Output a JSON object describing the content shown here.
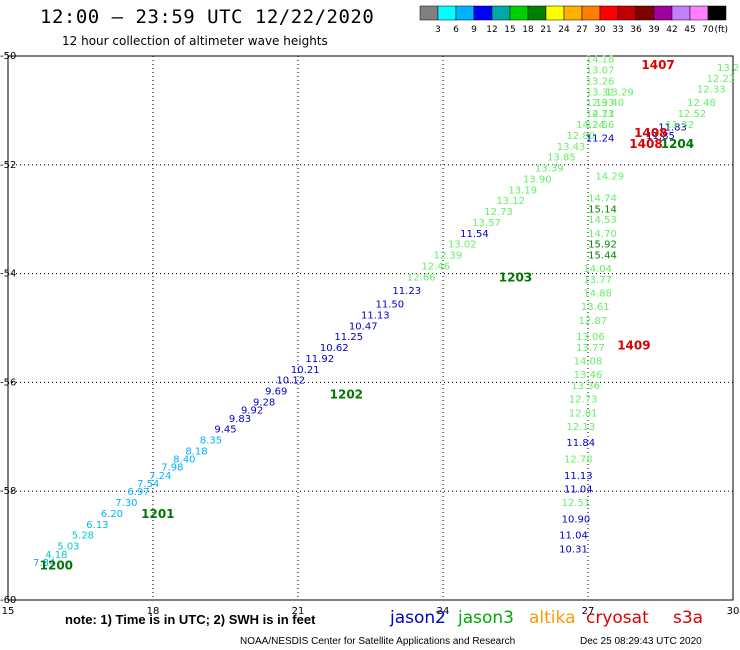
{
  "header": {
    "title": "12:00 – 23:59 UTC 12/22/2020",
    "subtitle": "12 hour collection of altimeter wave heights"
  },
  "colorbar": {
    "ticks": [
      "3",
      "6",
      "9",
      "12",
      "15",
      "18",
      "21",
      "24",
      "27",
      "30",
      "33",
      "36",
      "39",
      "42",
      "45",
      "70"
    ],
    "unit": "(ft)",
    "colors": [
      "#808080",
      "#00ffff",
      "#00b2ff",
      "#0000ff",
      "#00a8a8",
      "#00d000",
      "#008000",
      "#ffff00",
      "#ffb000",
      "#ff8000",
      "#ff0000",
      "#c00000",
      "#800000",
      "#a000a0",
      "#c080ff",
      "#ff80ff",
      "#000000"
    ]
  },
  "footer": {
    "note": "note: 1) Time is in UTC; 2) SWH is in feet",
    "source": "NOAA/NESDIS Center for Satellite Applications and Research",
    "timestamp": "Dec 25 08:29:43 UTC 2020"
  },
  "satellites": [
    {
      "name": "jason2",
      "color": "#0000cc"
    },
    {
      "name": "jason3",
      "color": "#00aa00"
    },
    {
      "name": "altika",
      "color": "#ff9900"
    },
    {
      "name": "cryosat",
      "color": "#dd0000"
    },
    {
      "name": "s3a",
      "color": "#dd0000"
    }
  ],
  "chart_data": {
    "type": "scatter",
    "xlim": [
      15,
      30
    ],
    "ylim": [
      -60,
      -50
    ],
    "xticks": [
      "15",
      "18",
      "21",
      "24",
      "27",
      "30"
    ],
    "yticks": [
      "-50",
      "-52",
      "-54",
      "-56",
      "-58",
      "-60"
    ],
    "grid": true,
    "time_labels": [
      {
        "text": "1200",
        "x": 16.0,
        "y": -59.35,
        "color": "#007700"
      },
      {
        "text": "1201",
        "x": 18.1,
        "y": -58.4,
        "color": "#007700"
      },
      {
        "text": "1202",
        "x": 22.0,
        "y": -56.2,
        "color": "#007700"
      },
      {
        "text": "1203",
        "x": 25.5,
        "y": -54.05,
        "color": "#007700"
      },
      {
        "text": "1204",
        "x": 28.85,
        "y": -51.6,
        "color": "#007700"
      },
      {
        "text": "1407",
        "x": 28.45,
        "y": -50.15,
        "color": "#dd0000"
      },
      {
        "text": "1408",
        "x": 28.3,
        "y": -51.4,
        "color": "#dd0000"
      },
      {
        "text": "1408",
        "x": 28.2,
        "y": -51.6,
        "color": "#dd0000"
      },
      {
        "text": "1409",
        "x": 27.95,
        "y": -55.3,
        "color": "#dd0000"
      }
    ],
    "series": [
      {
        "satellite": "jason3 (track 1)",
        "points": [
          {
            "x": 15.75,
            "y": -59.3,
            "v": "7.34",
            "c": "#00b2ff"
          },
          {
            "x": 16.0,
            "y": -59.15,
            "v": "4.18",
            "c": "#00cccc"
          },
          {
            "x": 16.25,
            "y": -59.0,
            "v": "5.03",
            "c": "#00cccc"
          },
          {
            "x": 16.55,
            "y": -58.8,
            "v": "5.28",
            "c": "#00cccc"
          },
          {
            "x": 16.85,
            "y": -58.6,
            "v": "6.13",
            "c": "#00b2ff"
          },
          {
            "x": 17.15,
            "y": -58.4,
            "v": "6.20",
            "c": "#00b2ff"
          },
          {
            "x": 17.45,
            "y": -58.2,
            "v": "7.30",
            "c": "#00b2ff"
          },
          {
            "x": 17.7,
            "y": -58.0,
            "v": "6.97",
            "c": "#00b2ff"
          },
          {
            "x": 17.9,
            "y": -57.85,
            "v": "7.54",
            "c": "#00b2ff"
          },
          {
            "x": 18.15,
            "y": -57.7,
            "v": "7.24",
            "c": "#00b2ff"
          },
          {
            "x": 18.4,
            "y": -57.55,
            "v": "7.98",
            "c": "#00b2ff"
          },
          {
            "x": 18.65,
            "y": -57.4,
            "v": "8.40",
            "c": "#00b2ff"
          },
          {
            "x": 18.9,
            "y": -57.25,
            "v": "8.18",
            "c": "#00b2ff"
          },
          {
            "x": 19.2,
            "y": -57.05,
            "v": "8.35",
            "c": "#00b2ff"
          },
          {
            "x": 19.5,
            "y": -56.85,
            "v": "9.45",
            "c": "#0000cc"
          },
          {
            "x": 19.8,
            "y": -56.65,
            "v": "9.83",
            "c": "#0000cc"
          },
          {
            "x": 20.05,
            "y": -56.5,
            "v": "9.92",
            "c": "#0000cc"
          },
          {
            "x": 20.3,
            "y": -56.35,
            "v": "9.28",
            "c": "#0000cc"
          },
          {
            "x": 20.55,
            "y": -56.15,
            "v": "9.69",
            "c": "#0000cc"
          },
          {
            "x": 20.85,
            "y": -55.95,
            "v": "10.12",
            "c": "#0000cc"
          },
          {
            "x": 21.15,
            "y": -55.75,
            "v": "10.21",
            "c": "#0000cc"
          },
          {
            "x": 21.45,
            "y": -55.55,
            "v": "11.92",
            "c": "#0000cc"
          },
          {
            "x": 21.75,
            "y": -55.35,
            "v": "10.62",
            "c": "#0000cc"
          },
          {
            "x": 22.05,
            "y": -55.15,
            "v": "11.25",
            "c": "#0000cc"
          },
          {
            "x": 22.35,
            "y": -54.95,
            "v": "10.47",
            "c": "#0000cc"
          },
          {
            "x": 22.6,
            "y": -54.75,
            "v": "11.13",
            "c": "#0000cc"
          },
          {
            "x": 22.9,
            "y": -54.55,
            "v": "11.50",
            "c": "#0000cc"
          },
          {
            "x": 23.25,
            "y": -54.3,
            "v": "11.23",
            "c": "#0000cc"
          },
          {
            "x": 23.55,
            "y": -54.05,
            "v": "12.66",
            "c": "#66ee66"
          },
          {
            "x": 23.85,
            "y": -53.85,
            "v": "12.46",
            "c": "#66ee66"
          },
          {
            "x": 24.1,
            "y": -53.65,
            "v": "12.39",
            "c": "#66ee66"
          },
          {
            "x": 24.4,
            "y": -53.45,
            "v": "13.02",
            "c": "#66ee66"
          },
          {
            "x": 24.65,
            "y": -53.25,
            "v": "11.54",
            "c": "#0000cc"
          },
          {
            "x": 24.9,
            "y": -53.05,
            "v": "13.57",
            "c": "#66ee66"
          },
          {
            "x": 25.15,
            "y": -52.85,
            "v": "12.73",
            "c": "#66ee66"
          },
          {
            "x": 25.4,
            "y": -52.65,
            "v": "13.12",
            "c": "#66ee66"
          },
          {
            "x": 25.65,
            "y": -52.45,
            "v": "13.19",
            "c": "#66ee66"
          },
          {
            "x": 25.95,
            "y": -52.25,
            "v": "13.90",
            "c": "#66ee66"
          },
          {
            "x": 26.2,
            "y": -52.05,
            "v": "13.39",
            "c": "#66ee66"
          },
          {
            "x": 26.45,
            "y": -51.85,
            "v": "13.85",
            "c": "#66ee66"
          },
          {
            "x": 26.65,
            "y": -51.65,
            "v": "13.43",
            "c": "#66ee66"
          },
          {
            "x": 26.85,
            "y": -51.45,
            "v": "12.80",
            "c": "#66ee66"
          },
          {
            "x": 27.05,
            "y": -51.25,
            "v": "14.24",
            "c": "#66ee66"
          },
          {
            "x": 27.25,
            "y": -51.05,
            "v": "14.11",
            "c": "#66ee66"
          },
          {
            "x": 27.45,
            "y": -50.85,
            "v": "13.40",
            "c": "#66ee66"
          },
          {
            "x": 27.65,
            "y": -50.65,
            "v": "13.29",
            "c": "#66ee66"
          }
        ]
      },
      {
        "satellite": "jason3 (track 2, near 27E)",
        "points": [
          {
            "x": 27.25,
            "y": -50.05,
            "v": "14.18",
            "c": "#66ee66"
          },
          {
            "x": 27.25,
            "y": -50.25,
            "v": "13.07",
            "c": "#66ee66"
          },
          {
            "x": 27.25,
            "y": -50.45,
            "v": "13.26",
            "c": "#66ee66"
          },
          {
            "x": 27.25,
            "y": -50.65,
            "v": "13.32",
            "c": "#66ee66"
          },
          {
            "x": 27.25,
            "y": -50.85,
            "v": "12.93",
            "c": "#66ee66"
          },
          {
            "x": 27.25,
            "y": -51.05,
            "v": "12.73",
            "c": "#66ee66"
          },
          {
            "x": 27.25,
            "y": -51.25,
            "v": "12.56",
            "c": "#66ee66"
          },
          {
            "x": 27.25,
            "y": -51.5,
            "v": "11.24",
            "c": "#0000cc"
          },
          {
            "x": 27.45,
            "y": -52.2,
            "v": "14.29",
            "c": "#66ee66"
          },
          {
            "x": 27.3,
            "y": -52.6,
            "v": "14.74",
            "c": "#66ee66"
          },
          {
            "x": 27.3,
            "y": -52.8,
            "v": "15.14",
            "c": "#008800"
          },
          {
            "x": 27.3,
            "y": -53.0,
            "v": "14.53",
            "c": "#66ee66"
          },
          {
            "x": 27.3,
            "y": -53.25,
            "v": "14.70",
            "c": "#66ee66"
          },
          {
            "x": 27.3,
            "y": -53.45,
            "v": "15.92",
            "c": "#008800"
          },
          {
            "x": 27.3,
            "y": -53.65,
            "v": "15.44",
            "c": "#008800"
          },
          {
            "x": 27.2,
            "y": -53.9,
            "v": "14.04",
            "c": "#66ee66"
          },
          {
            "x": 27.2,
            "y": -54.1,
            "v": "13.77",
            "c": "#66ee66"
          },
          {
            "x": 27.2,
            "y": -54.35,
            "v": "14.88",
            "c": "#66ee66"
          },
          {
            "x": 27.15,
            "y": -54.6,
            "v": "13.61",
            "c": "#66ee66"
          },
          {
            "x": 27.1,
            "y": -54.85,
            "v": "12.87",
            "c": "#66ee66"
          },
          {
            "x": 27.05,
            "y": -55.15,
            "v": "13.06",
            "c": "#66ee66"
          },
          {
            "x": 27.05,
            "y": -55.35,
            "v": "13.77",
            "c": "#66ee66"
          },
          {
            "x": 27.0,
            "y": -55.6,
            "v": "14.08",
            "c": "#66ee66"
          },
          {
            "x": 27.0,
            "y": -55.85,
            "v": "13.46",
            "c": "#66ee66"
          },
          {
            "x": 26.95,
            "y": -56.05,
            "v": "13.36",
            "c": "#66ee66"
          },
          {
            "x": 26.9,
            "y": -56.3,
            "v": "12.73",
            "c": "#66ee66"
          },
          {
            "x": 26.9,
            "y": -56.55,
            "v": "12.81",
            "c": "#66ee66"
          },
          {
            "x": 26.85,
            "y": -56.8,
            "v": "12.13",
            "c": "#66ee66"
          },
          {
            "x": 26.85,
            "y": -57.1,
            "v": "11.84",
            "c": "#0000cc"
          },
          {
            "x": 26.8,
            "y": -57.4,
            "v": "12.78",
            "c": "#66ee66"
          },
          {
            "x": 26.8,
            "y": -57.7,
            "v": "11.13",
            "c": "#0000cc"
          },
          {
            "x": 26.8,
            "y": -57.95,
            "v": "11.04",
            "c": "#0000cc"
          },
          {
            "x": 26.75,
            "y": -58.2,
            "v": "12.51",
            "c": "#66ee66"
          },
          {
            "x": 26.75,
            "y": -58.5,
            "v": "10.90",
            "c": "#0000cc"
          },
          {
            "x": 26.7,
            "y": -58.8,
            "v": "11.04",
            "c": "#0000cc"
          },
          {
            "x": 26.7,
            "y": -59.05,
            "v": "10.31",
            "c": "#0000cc"
          }
        ]
      },
      {
        "satellite": "cryosat (near 28E)",
        "points": [
          {
            "x": 28.5,
            "y": -51.45,
            "v": "11.85",
            "c": "#0000cc"
          },
          {
            "x": 28.75,
            "y": -51.3,
            "v": "11.83",
            "c": "#0000cc"
          }
        ]
      },
      {
        "satellite": "jason3 (track 3, east edge)",
        "points": [
          {
            "x": 29.9,
            "y": -50.2,
            "v": "13.2",
            "c": "#66ee66"
          },
          {
            "x": 29.75,
            "y": -50.4,
            "v": "12.23",
            "c": "#66ee66"
          },
          {
            "x": 29.55,
            "y": -50.6,
            "v": "12.33",
            "c": "#66ee66"
          },
          {
            "x": 29.35,
            "y": -50.85,
            "v": "12.48",
            "c": "#66ee66"
          },
          {
            "x": 29.15,
            "y": -51.05,
            "v": "12.52",
            "c": "#66ee66"
          },
          {
            "x": 28.9,
            "y": -51.25,
            "v": "11.32",
            "c": "#66ee66"
          }
        ]
      }
    ]
  }
}
